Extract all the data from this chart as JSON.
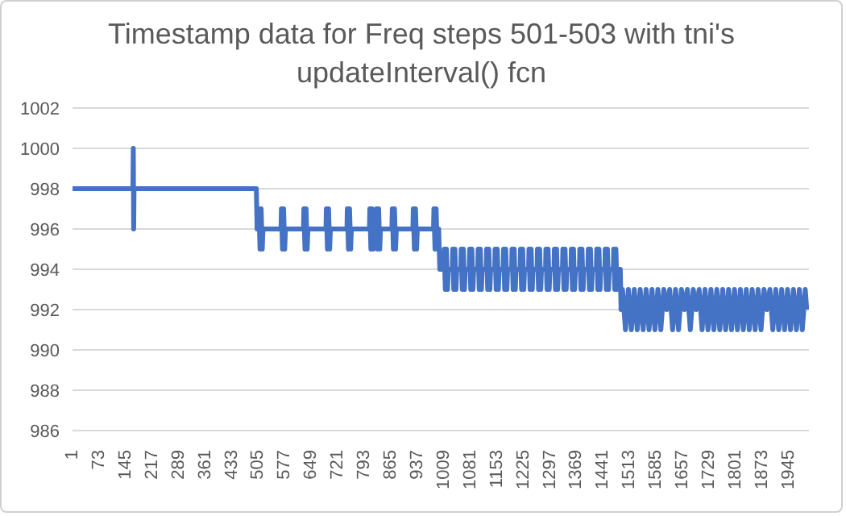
{
  "chart_data": {
    "type": "line",
    "title": "Timestamp data for Freq steps 501-503 with tni's updateInterval() fcn",
    "color": "#4472c4",
    "x": [
      1,
      165,
      166,
      167,
      168,
      500,
      502,
      506,
      507,
      510,
      513,
      516,
      518,
      567,
      568,
      571,
      574,
      577,
      579,
      628,
      629,
      632,
      635,
      638,
      640,
      689,
      690,
      693,
      696,
      699,
      701,
      746,
      747,
      750,
      753,
      756,
      758,
      807,
      808,
      811,
      814,
      817,
      819,
      825,
      826,
      829,
      832,
      835,
      837,
      868,
      869,
      872,
      875,
      878,
      880,
      925,
      926,
      929,
      932,
      935,
      937,
      981,
      982,
      985,
      988,
      991,
      993,
      995,
      998,
      1009,
      1010,
      1013,
      1016,
      1019,
      1021,
      1032,
      1033,
      1036,
      1039,
      1042,
      1044,
      1055,
      1056,
      1059,
      1062,
      1065,
      1067,
      1078,
      1079,
      1082,
      1085,
      1088,
      1090,
      1101,
      1102,
      1105,
      1108,
      1111,
      1113,
      1124,
      1125,
      1128,
      1131,
      1134,
      1136,
      1147,
      1148,
      1151,
      1154,
      1157,
      1159,
      1170,
      1171,
      1174,
      1177,
      1180,
      1182,
      1193,
      1194,
      1197,
      1200,
      1203,
      1205,
      1216,
      1217,
      1220,
      1223,
      1226,
      1228,
      1239,
      1240,
      1243,
      1246,
      1249,
      1251,
      1262,
      1263,
      1266,
      1269,
      1272,
      1274,
      1285,
      1286,
      1289,
      1292,
      1295,
      1297,
      1308,
      1309,
      1312,
      1315,
      1318,
      1320,
      1331,
      1332,
      1335,
      1338,
      1341,
      1343,
      1354,
      1355,
      1358,
      1361,
      1364,
      1366,
      1377,
      1378,
      1381,
      1384,
      1387,
      1389,
      1400,
      1401,
      1404,
      1407,
      1410,
      1412,
      1423,
      1424,
      1427,
      1430,
      1433,
      1435,
      1446,
      1447,
      1450,
      1453,
      1456,
      1458,
      1469,
      1470,
      1473,
      1476,
      1479,
      1481,
      1488,
      1490,
      1494,
      1502,
      1510,
      1518,
      1526,
      1534,
      1542,
      1550,
      1558,
      1566,
      1574,
      1582,
      1590,
      1598,
      1606,
      1614,
      1622,
      1630,
      1638,
      1646,
      1654,
      1662,
      1670,
      1678,
      1686,
      1694,
      1702,
      1710,
      1718,
      1726,
      1734,
      1742,
      1750,
      1758,
      1766,
      1774,
      1782,
      1790,
      1798,
      1806,
      1814,
      1822,
      1830,
      1838,
      1846,
      1854,
      1862,
      1870,
      1878,
      1886,
      1894,
      1902,
      1910,
      1918,
      1926,
      1934,
      1942,
      1950,
      1958,
      1966,
      1974,
      1982,
      1990,
      1994
    ],
    "values": [
      998,
      998,
      1000,
      996,
      998,
      998,
      996,
      996,
      997,
      995,
      997,
      995,
      996,
      996,
      997,
      995,
      997,
      995,
      996,
      996,
      997,
      995,
      997,
      995,
      996,
      996,
      997,
      995,
      997,
      995,
      996,
      996,
      997,
      995,
      997,
      995,
      996,
      996,
      997,
      995,
      997,
      995,
      996,
      996,
      997,
      995,
      997,
      995,
      996,
      996,
      997,
      995,
      997,
      995,
      996,
      996,
      997,
      995,
      997,
      995,
      996,
      996,
      997,
      995,
      997,
      995,
      996,
      996,
      994,
      994,
      995,
      993,
      995,
      993,
      994,
      994,
      995,
      993,
      995,
      993,
      994,
      994,
      995,
      993,
      995,
      993,
      994,
      994,
      995,
      993,
      995,
      993,
      994,
      994,
      995,
      993,
      995,
      993,
      994,
      994,
      995,
      993,
      995,
      993,
      994,
      994,
      995,
      993,
      995,
      993,
      994,
      994,
      995,
      993,
      995,
      993,
      994,
      994,
      995,
      993,
      995,
      993,
      994,
      994,
      995,
      993,
      995,
      993,
      994,
      994,
      995,
      993,
      995,
      993,
      994,
      994,
      995,
      993,
      995,
      993,
      994,
      994,
      995,
      993,
      995,
      993,
      994,
      994,
      995,
      993,
      995,
      993,
      994,
      994,
      995,
      993,
      995,
      993,
      994,
      994,
      995,
      993,
      995,
      993,
      994,
      994,
      995,
      993,
      995,
      993,
      994,
      994,
      995,
      993,
      995,
      993,
      994,
      994,
      995,
      993,
      995,
      993,
      994,
      994,
      995,
      993,
      995,
      993,
      994,
      994,
      995,
      993,
      995,
      993,
      994,
      994,
      992,
      993,
      991,
      993,
      991,
      993,
      991,
      993,
      991,
      993,
      991,
      993,
      991,
      993,
      991,
      993,
      992,
      993,
      991,
      993,
      991,
      993,
      992,
      993,
      991,
      993,
      992,
      993,
      991,
      993,
      991,
      993,
      991,
      993,
      991,
      993,
      991,
      993,
      991,
      993,
      991,
      993,
      991,
      993,
      991,
      993,
      991,
      993,
      991,
      993,
      992,
      993,
      991,
      993,
      991,
      993,
      991,
      993,
      991,
      993,
      991,
      993,
      991,
      993,
      992
    ],
    "xlim": [
      1,
      2000
    ],
    "xticks": [
      1,
      73,
      145,
      217,
      289,
      361,
      433,
      505,
      577,
      649,
      721,
      793,
      865,
      937,
      1009,
      1081,
      1153,
      1225,
      1297,
      1369,
      1441,
      1513,
      1585,
      1657,
      1729,
      1801,
      1873,
      1945
    ],
    "ylim": [
      986,
      1002
    ],
    "yticks": [
      986,
      988,
      990,
      992,
      994,
      996,
      998,
      1000,
      1002
    ],
    "grid": "y",
    "marker": "none",
    "line_style": "solid"
  }
}
